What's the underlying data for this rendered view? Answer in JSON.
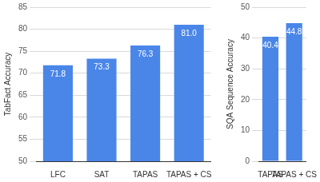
{
  "chart_data": [
    {
      "type": "bar",
      "ylabel": "TabFact Accuracy",
      "categories": [
        "LFC",
        "SAT",
        "TAPAS",
        "TAPAS + CS"
      ],
      "values": [
        71.8,
        73.3,
        76.3,
        81.0
      ],
      "value_labels": [
        "71.8",
        "73.3",
        "76.3",
        "81.0"
      ],
      "color": "#4a86e8",
      "data_labels": true,
      "ylim": [
        50,
        85
      ],
      "yticks": [
        50,
        55,
        60,
        65,
        70,
        75,
        80,
        85
      ],
      "grid": true
    },
    {
      "type": "bar",
      "ylabel": "SQA Sequence Accuracy",
      "categories": [
        "TAPAS",
        "TAPAS + CS"
      ],
      "values": [
        40.4,
        44.8
      ],
      "value_labels": [
        "40.4",
        "44.8"
      ],
      "color": "#4a86e8",
      "data_labels": true,
      "ylim": [
        0,
        50
      ],
      "yticks": [
        0,
        10,
        20,
        30,
        40,
        50
      ],
      "grid": true
    }
  ]
}
